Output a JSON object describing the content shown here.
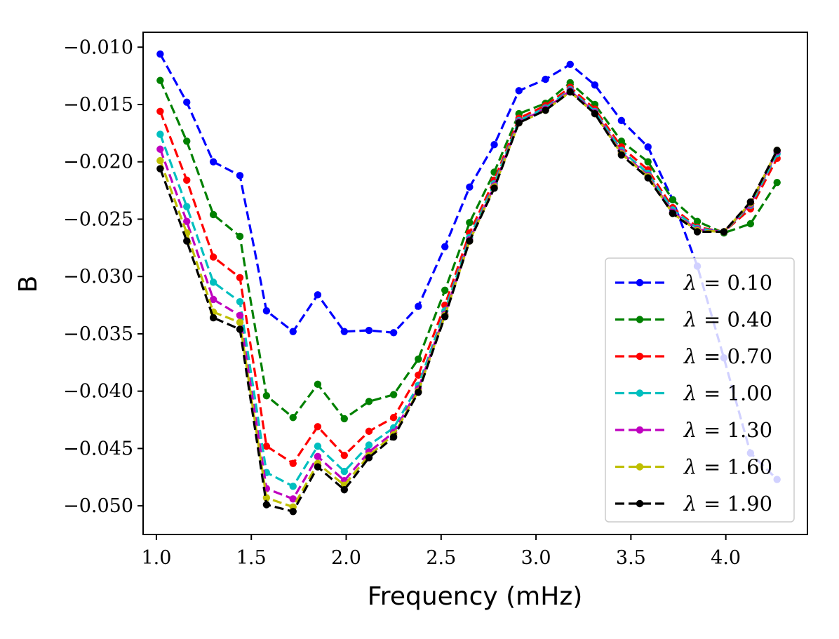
{
  "chart_data": {
    "type": "line",
    "title": "",
    "xlabel": "Frequency (mHz)",
    "ylabel": "B",
    "xlim": [
      0.93,
      4.43
    ],
    "ylim": [
      -0.0525,
      -0.0087
    ],
    "xticks": [
      {
        "value": 1.0,
        "label": "1.0"
      },
      {
        "value": 1.5,
        "label": "1.5"
      },
      {
        "value": 2.0,
        "label": "2.0"
      },
      {
        "value": 2.5,
        "label": "2.5"
      },
      {
        "value": 3.0,
        "label": "3.0"
      },
      {
        "value": 3.5,
        "label": "3.5"
      },
      {
        "value": 4.0,
        "label": "4.0"
      }
    ],
    "yticks": [
      {
        "value": -0.01,
        "label": "−0.010"
      },
      {
        "value": -0.015,
        "label": "−0.015"
      },
      {
        "value": -0.02,
        "label": "−0.020"
      },
      {
        "value": -0.025,
        "label": "−0.025"
      },
      {
        "value": -0.03,
        "label": "−0.030"
      },
      {
        "value": -0.035,
        "label": "−0.035"
      },
      {
        "value": -0.04,
        "label": "−0.040"
      },
      {
        "value": -0.045,
        "label": "−0.045"
      },
      {
        "value": -0.05,
        "label": "−0.050"
      }
    ],
    "grid": false,
    "legend_position": "lower-right",
    "x": [
      1.02,
      1.16,
      1.3,
      1.44,
      1.58,
      1.72,
      1.85,
      1.99,
      2.12,
      2.25,
      2.38,
      2.52,
      2.65,
      2.78,
      2.91,
      3.05,
      3.18,
      3.31,
      3.45,
      3.59,
      3.72,
      3.85,
      3.99,
      4.13,
      4.27
    ],
    "series": [
      {
        "name": "λ = 0.10",
        "lambda_symbol": "λ",
        "lambda_value": "= 0.10",
        "color": "#0000ff",
        "values": [
          -0.0106,
          -0.0148,
          -0.02,
          -0.0212,
          -0.033,
          -0.0348,
          -0.0316,
          -0.0348,
          -0.0347,
          -0.0349,
          -0.0326,
          -0.0274,
          -0.0222,
          -0.0185,
          -0.0138,
          -0.0128,
          -0.0115,
          -0.0133,
          -0.0164,
          -0.0187,
          -0.0233,
          -0.0291,
          -0.0371,
          -0.0454,
          -0.0477
        ]
      },
      {
        "name": "λ = 0.40",
        "lambda_symbol": "λ",
        "lambda_value": "= 0.40",
        "color": "#008000",
        "values": [
          -0.0129,
          -0.0182,
          -0.0246,
          -0.0265,
          -0.0404,
          -0.0423,
          -0.0394,
          -0.0424,
          -0.0409,
          -0.0403,
          -0.0372,
          -0.0312,
          -0.0253,
          -0.0209,
          -0.0158,
          -0.0149,
          -0.0131,
          -0.015,
          -0.0182,
          -0.02,
          -0.0233,
          -0.0252,
          -0.0262,
          -0.0254,
          -0.0218
        ]
      },
      {
        "name": "λ = 0.70",
        "lambda_symbol": "λ",
        "lambda_value": "= 0.70",
        "color": "#ff0000",
        "values": [
          -0.0156,
          -0.0216,
          -0.0283,
          -0.0301,
          -0.0448,
          -0.0463,
          -0.0431,
          -0.0456,
          -0.0435,
          -0.0423,
          -0.0386,
          -0.0325,
          -0.0262,
          -0.0216,
          -0.0162,
          -0.0151,
          -0.0135,
          -0.0154,
          -0.0187,
          -0.0207,
          -0.024,
          -0.0257,
          -0.0261,
          -0.0241,
          -0.0197
        ]
      },
      {
        "name": "λ = 1.00",
        "lambda_symbol": "λ",
        "lambda_value": "= 1.00",
        "color": "#00bfbf",
        "values": [
          -0.0176,
          -0.0239,
          -0.0305,
          -0.0322,
          -0.0471,
          -0.0483,
          -0.0448,
          -0.047,
          -0.0447,
          -0.0432,
          -0.0395,
          -0.033,
          -0.0266,
          -0.0219,
          -0.0164,
          -0.0153,
          -0.0137,
          -0.0156,
          -0.019,
          -0.021,
          -0.0242,
          -0.0258,
          -0.0261,
          -0.0238,
          -0.0193
        ]
      },
      {
        "name": "λ = 1.30",
        "lambda_symbol": "λ",
        "lambda_value": "= 1.30",
        "color": "#bf00bf",
        "values": [
          -0.0189,
          -0.0252,
          -0.032,
          -0.0334,
          -0.0485,
          -0.0494,
          -0.0457,
          -0.0478,
          -0.0453,
          -0.0436,
          -0.0398,
          -0.0333,
          -0.0268,
          -0.0221,
          -0.0165,
          -0.0154,
          -0.0138,
          -0.0157,
          -0.0192,
          -0.0212,
          -0.0244,
          -0.0259,
          -0.0261,
          -0.0237,
          -0.0191
        ]
      },
      {
        "name": "λ = 1.60",
        "lambda_symbol": "λ",
        "lambda_value": "= 1.60",
        "color": "#bfbf00",
        "values": [
          -0.0199,
          -0.0262,
          -0.0331,
          -0.034,
          -0.0493,
          -0.0501,
          -0.0463,
          -0.0482,
          -0.0456,
          -0.0438,
          -0.04,
          -0.0334,
          -0.0269,
          -0.0222,
          -0.0166,
          -0.0155,
          -0.0139,
          -0.0158,
          -0.0193,
          -0.0213,
          -0.0245,
          -0.026,
          -0.0261,
          -0.0236,
          -0.019
        ]
      },
      {
        "name": "λ = 1.90",
        "lambda_symbol": "λ",
        "lambda_value": "= 1.90",
        "color": "#000000",
        "values": [
          -0.0206,
          -0.0269,
          -0.0336,
          -0.0346,
          -0.0499,
          -0.0505,
          -0.0466,
          -0.0486,
          -0.0458,
          -0.044,
          -0.0401,
          -0.0335,
          -0.0269,
          -0.0223,
          -0.0166,
          -0.0155,
          -0.0139,
          -0.0158,
          -0.0194,
          -0.0214,
          -0.0245,
          -0.0261,
          -0.0261,
          -0.0235,
          -0.019
        ]
      }
    ]
  }
}
